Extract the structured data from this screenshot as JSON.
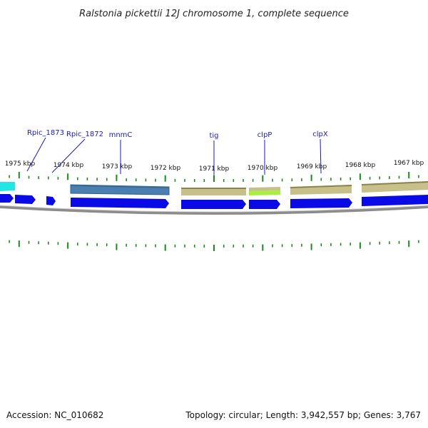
{
  "title": "Ralstonia pickettii 12J chromosome 1, complete sequence",
  "footer": {
    "accession": "Accession: NC_010682",
    "summary": "Topology: circular; Length: 3,942,557 bp; Genes: 3,767"
  },
  "scale_labels": [
    "1975 kbp",
    "1974 kbp",
    "1973 kbp",
    "1972 kbp",
    "1971 kbp",
    "1970 kbp",
    "1969 kbp",
    "1968 kbp",
    "1967 kbp"
  ],
  "gene_labels": [
    "Rpic_1873",
    "Rpic_1872",
    "mnmC",
    "tig",
    "clpP",
    "clpX"
  ],
  "colors": {
    "cds": "#0a0ae6",
    "gene_tan": "#c8c08a",
    "gene_steel": "#4a7fb0",
    "gene_cyan": "#20e6e6",
    "gene_lime": "#a8f040",
    "tick": "#1a8c1a",
    "backbone": "#8c8c8c",
    "label": "#1a1ab4"
  }
}
